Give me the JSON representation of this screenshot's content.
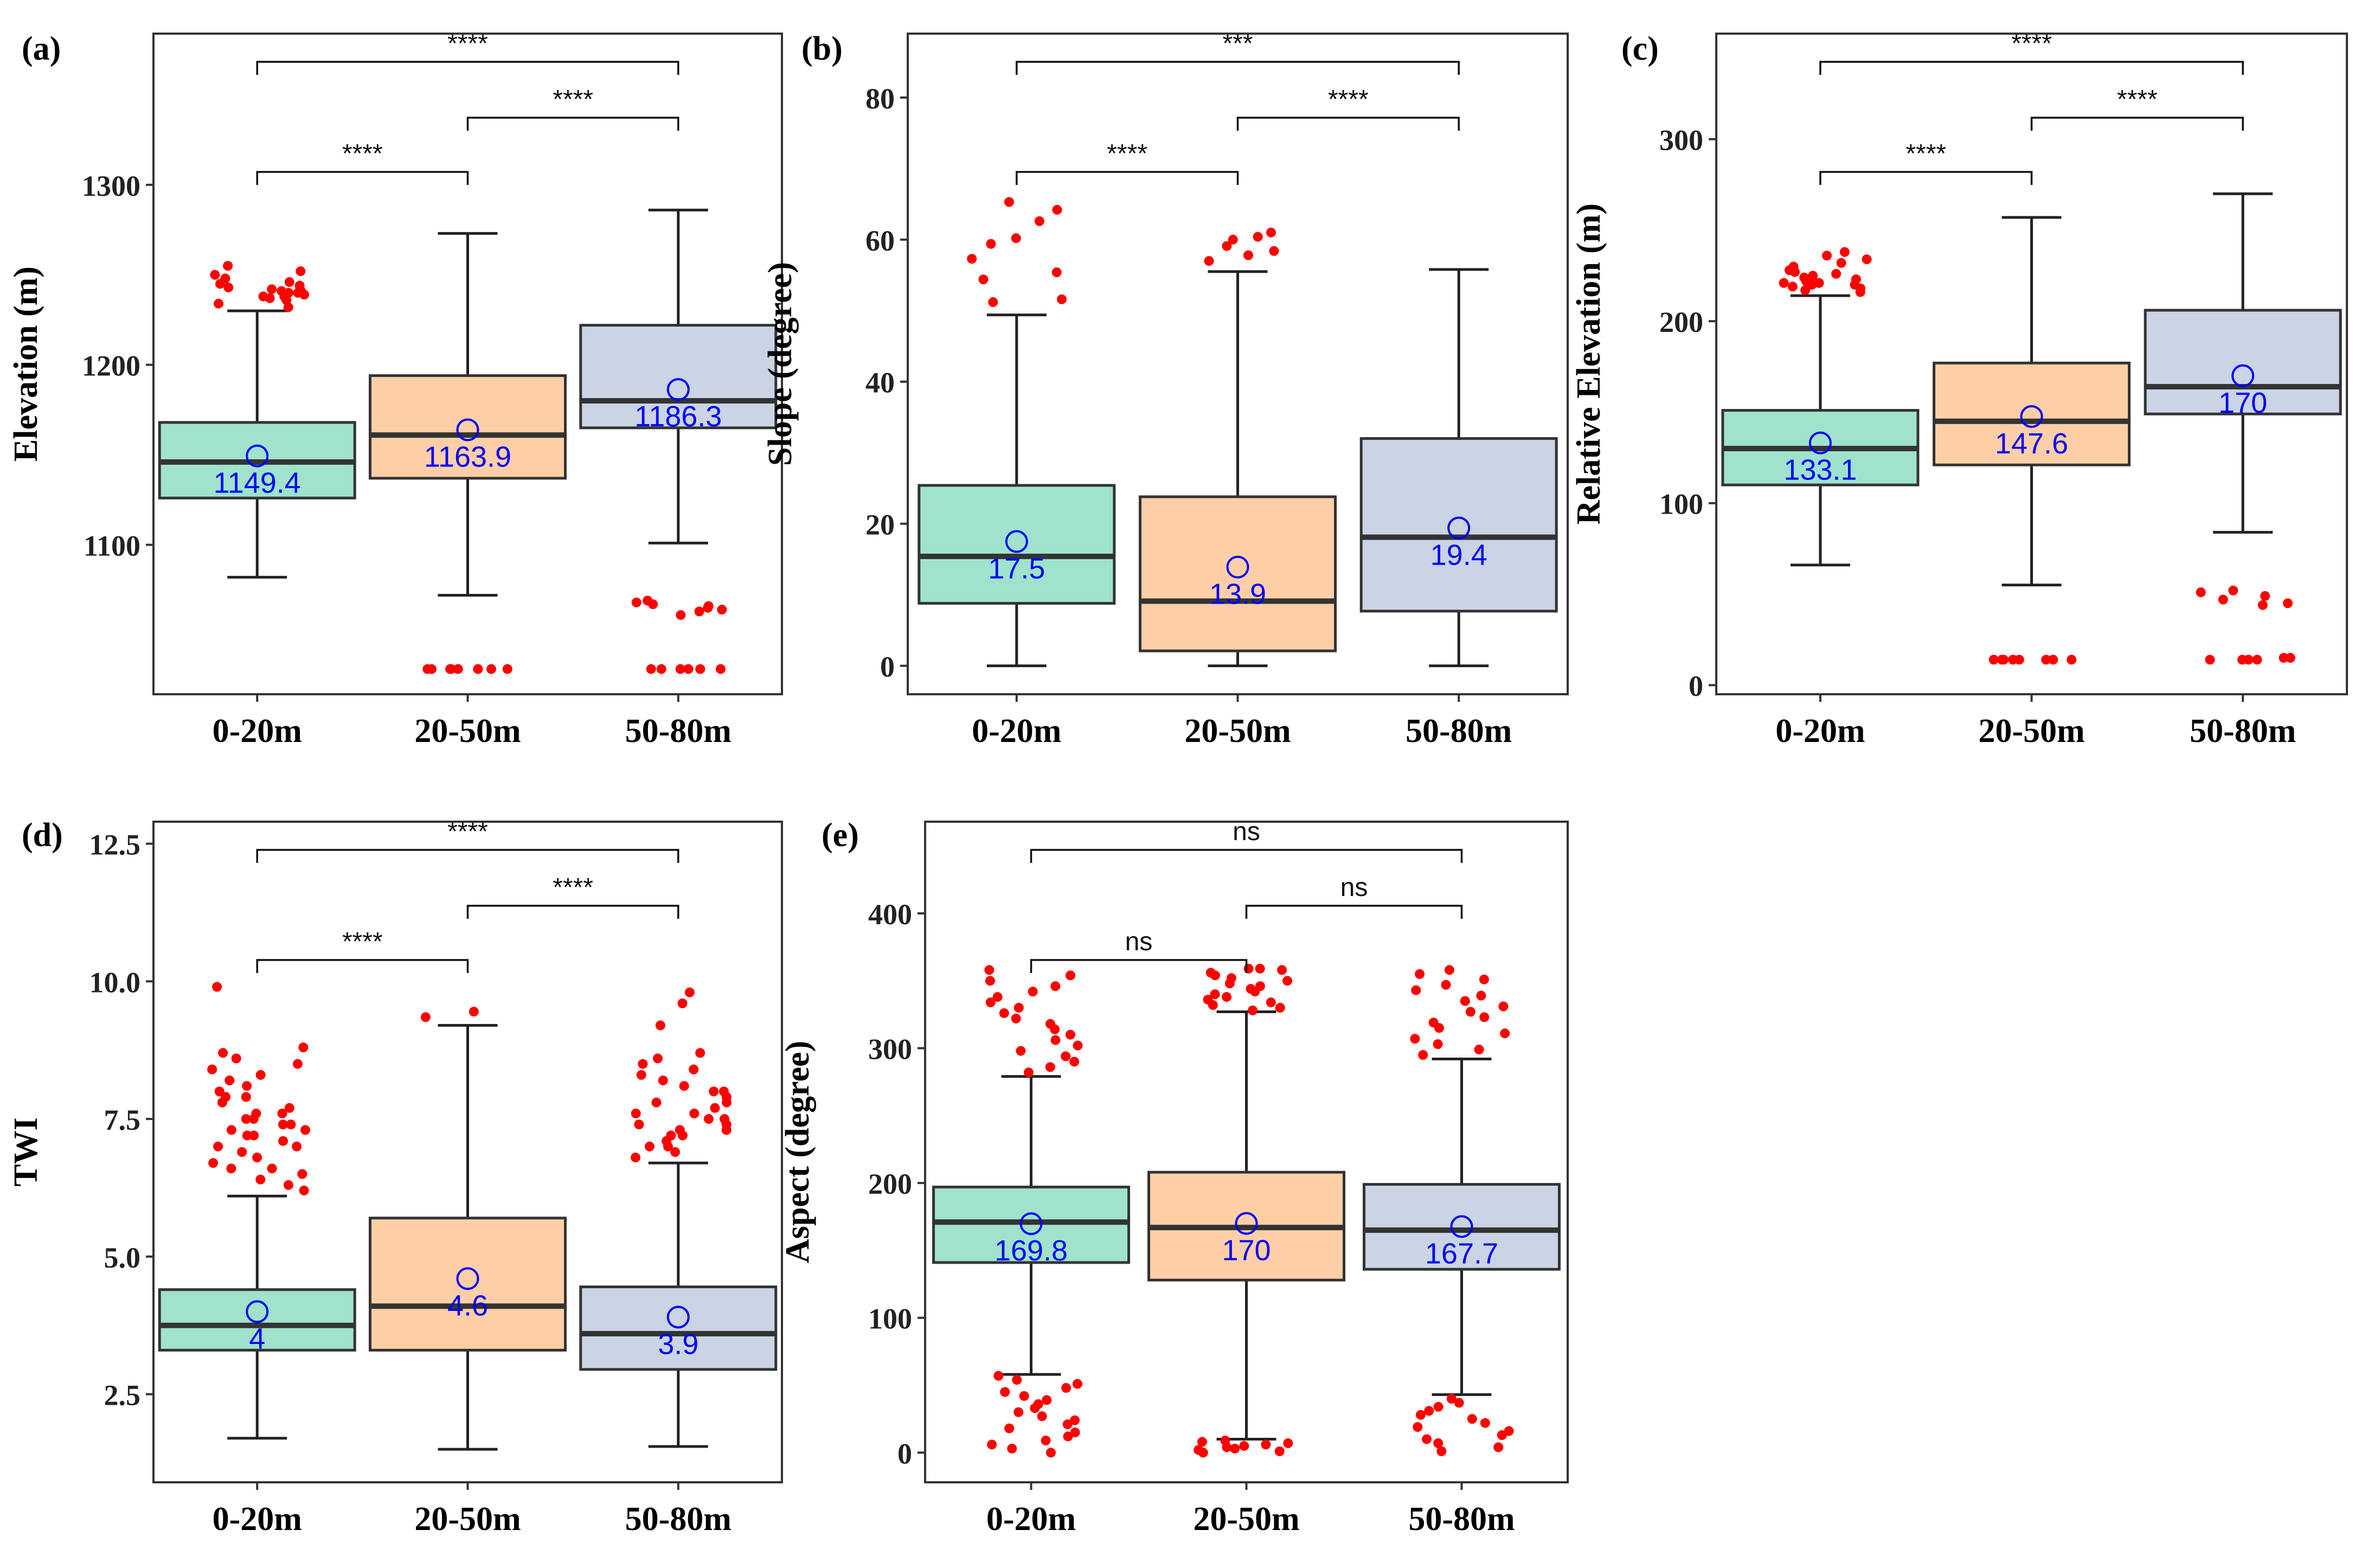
{
  "figure": {
    "x_categories": [
      "0-20m",
      "20-50m",
      "50-80m"
    ]
  },
  "chart_data": [
    {
      "panel_label": "(a)",
      "type": "box",
      "ylabel": "Elevation (m)",
      "ylim": [
        1017,
        1384
      ],
      "yticks": [
        1100,
        1200,
        1300
      ],
      "categories": [
        "0-20m",
        "20-50m",
        "50-80m"
      ],
      "colors": [
        "#9fe3cc",
        "#fecfa7",
        "#cad4e5"
      ],
      "boxes": [
        {
          "whisker_low": 1082,
          "q1": 1126,
          "median": 1146,
          "q3": 1168,
          "whisker_high": 1230,
          "mean": 1149.4,
          "mean_label": "1149.4",
          "outliers": [
            1232,
            1234,
            1236,
            1237,
            1238,
            1238,
            1239,
            1240,
            1240,
            1241,
            1241,
            1242,
            1243,
            1244,
            1245,
            1246,
            1248,
            1250,
            1252,
            1255
          ]
        },
        {
          "whisker_low": 1072,
          "q1": 1137,
          "median": 1161,
          "q3": 1194,
          "whisker_high": 1273,
          "mean": 1163.9,
          "mean_label": "1163.9",
          "outliers": [
            1031,
            1031,
            1031,
            1031,
            1031,
            1031,
            1031,
            1031
          ]
        },
        {
          "whisker_low": 1101,
          "q1": 1165,
          "median": 1180,
          "q3": 1222,
          "whisker_high": 1286,
          "mean": 1186.3,
          "mean_label": "1186.3",
          "outliers": [
            1031,
            1031,
            1031,
            1031,
            1031,
            1031,
            1061,
            1063,
            1064,
            1065,
            1066,
            1067,
            1068,
            1069
          ]
        }
      ],
      "comparisons": [
        {
          "from": 0,
          "to": 1,
          "label": "****"
        },
        {
          "from": 1,
          "to": 2,
          "label": "****"
        },
        {
          "from": 0,
          "to": 2,
          "label": "****"
        }
      ]
    },
    {
      "panel_label": "(b)",
      "type": "box",
      "ylabel": "Slope (degree)",
      "ylim": [
        -4,
        89
      ],
      "yticks": [
        0,
        20,
        40,
        60,
        80
      ],
      "categories": [
        "0-20m",
        "20-50m",
        "50-80m"
      ],
      "colors": [
        "#9fe3cc",
        "#fecfa7",
        "#cad4e5"
      ],
      "boxes": [
        {
          "whisker_low": 0,
          "q1": 8.8,
          "median": 15.4,
          "q3": 25.4,
          "whisker_high": 49.4,
          "mean": 17.5,
          "mean_label": "17.5",
          "outliers": [
            51.2,
            51.6,
            54.4,
            55.4,
            57.3,
            59.4,
            60.2,
            62.6,
            64.2,
            65.3
          ]
        },
        {
          "whisker_low": 0,
          "q1": 2.1,
          "median": 9.1,
          "q3": 23.8,
          "whisker_high": 55.5,
          "mean": 13.9,
          "mean_label": "13.9",
          "outliers": [
            57.0,
            57.8,
            58.4,
            59.1,
            60.0,
            60.4,
            61.0
          ]
        },
        {
          "whisker_low": 0,
          "q1": 7.7,
          "median": 18.1,
          "q3": 32.0,
          "whisker_high": 55.8,
          "mean": 19.4,
          "mean_label": "19.4",
          "outliers": []
        }
      ],
      "comparisons": [
        {
          "from": 0,
          "to": 1,
          "label": "****"
        },
        {
          "from": 1,
          "to": 2,
          "label": "****"
        },
        {
          "from": 0,
          "to": 2,
          "label": "***"
        }
      ]
    },
    {
      "panel_label": "(c)",
      "type": "box",
      "ylabel": "Relative Elevation (m)",
      "ylim": [
        -5,
        358
      ],
      "yticks": [
        0,
        100,
        200,
        300
      ],
      "categories": [
        "0-20m",
        "20-50m",
        "50-80m"
      ],
      "colors": [
        "#9fe3cc",
        "#fecfa7",
        "#cad4e5"
      ],
      "boxes": [
        {
          "whisker_low": 66,
          "q1": 110,
          "median": 130,
          "q3": 151,
          "whisker_high": 214,
          "mean": 133.1,
          "mean_label": "133.1",
          "outliers": [
            216,
            217,
            218,
            219,
            220,
            220,
            221,
            221,
            222,
            223,
            224,
            225,
            226,
            227,
            228,
            230,
            232,
            234,
            236,
            238
          ]
        },
        {
          "whisker_low": 55,
          "q1": 121,
          "median": 145,
          "q3": 177,
          "whisker_high": 257,
          "mean": 147.6,
          "mean_label": "147.6",
          "outliers": [
            14,
            14,
            14,
            14,
            14,
            14,
            14,
            14
          ]
        },
        {
          "whisker_low": 84,
          "q1": 149,
          "median": 164,
          "q3": 206,
          "whisker_high": 270,
          "mean": 170,
          "mean_label": "170",
          "outliers": [
            14,
            14,
            14,
            14,
            15,
            15,
            44,
            45,
            47,
            49,
            51,
            52
          ]
        }
      ],
      "comparisons": [
        {
          "from": 0,
          "to": 1,
          "label": "****"
        },
        {
          "from": 1,
          "to": 2,
          "label": "****"
        },
        {
          "from": 0,
          "to": 2,
          "label": "****"
        }
      ]
    },
    {
      "panel_label": "(d)",
      "type": "box",
      "ylabel": "TWI",
      "ylim": [
        0.9,
        12.9
      ],
      "yticks": [
        2.5,
        5.0,
        7.5,
        10.0,
        12.5
      ],
      "categories": [
        "0-20m",
        "20-50m",
        "50-80m"
      ],
      "colors": [
        "#9fe3cc",
        "#fecfa7",
        "#cad4e5"
      ],
      "boxes": [
        {
          "whisker_low": 1.7,
          "q1": 3.3,
          "median": 3.75,
          "q3": 4.4,
          "whisker_high": 6.1,
          "mean": 4.0,
          "mean_label": "4",
          "outliers": [
            6.2,
            6.3,
            6.4,
            6.5,
            6.6,
            6.6,
            6.7,
            6.8,
            6.9,
            7.0,
            7.0,
            7.1,
            7.2,
            7.2,
            7.3,
            7.3,
            7.4,
            7.4,
            7.5,
            7.5,
            7.6,
            7.6,
            7.7,
            7.8,
            7.9,
            7.9,
            8.0,
            8.1,
            8.2,
            8.3,
            8.4,
            8.5,
            8.6,
            8.7,
            8.8,
            9.9
          ]
        },
        {
          "whisker_low": 1.5,
          "q1": 3.3,
          "median": 4.1,
          "q3": 5.7,
          "whisker_high": 9.2,
          "mean": 4.6,
          "mean_label": "4.6",
          "outliers": [
            9.35,
            9.45
          ]
        },
        {
          "whisker_low": 1.55,
          "q1": 2.95,
          "median": 3.6,
          "q3": 4.45,
          "whisker_high": 6.7,
          "mean": 3.9,
          "mean_label": "3.9",
          "outliers": [
            6.8,
            6.9,
            7.0,
            7.0,
            7.1,
            7.2,
            7.2,
            7.3,
            7.3,
            7.4,
            7.4,
            7.5,
            7.5,
            7.6,
            7.6,
            7.7,
            7.8,
            7.8,
            7.9,
            8.0,
            8.0,
            8.1,
            8.2,
            8.3,
            8.4,
            8.5,
            8.6,
            8.7,
            9.2,
            9.6,
            9.8
          ]
        }
      ],
      "comparisons": [
        {
          "from": 0,
          "to": 1,
          "label": "****"
        },
        {
          "from": 1,
          "to": 2,
          "label": "****"
        },
        {
          "from": 0,
          "to": 2,
          "label": "****"
        }
      ]
    },
    {
      "panel_label": "(e)",
      "type": "box",
      "ylabel": "Aspect (degree)",
      "ylim": [
        -22,
        468
      ],
      "yticks": [
        0,
        100,
        200,
        300,
        400
      ],
      "categories": [
        "0-20m",
        "20-50m",
        "50-80m"
      ],
      "colors": [
        "#9fe3cc",
        "#fecfa7",
        "#cad4e5"
      ],
      "boxes": [
        {
          "whisker_low": 58,
          "q1": 141,
          "median": 171,
          "q3": 197,
          "whisker_high": 279,
          "mean": 169.8,
          "mean_label": "169.8",
          "outliers": [
            0,
            3,
            6,
            9,
            12,
            15,
            18,
            21,
            24,
            27,
            30,
            33,
            36,
            39,
            42,
            45,
            48,
            51,
            54,
            57,
            282,
            286,
            290,
            294,
            298,
            302,
            306,
            310,
            314,
            318,
            322,
            326,
            330,
            334,
            338,
            342,
            346,
            350,
            354,
            358
          ]
        },
        {
          "whisker_low": 10,
          "q1": 128,
          "median": 167,
          "q3": 208,
          "whisker_high": 327,
          "mean": 170,
          "mean_label": "170",
          "outliers": [
            0,
            1,
            2,
            3,
            4,
            5,
            6,
            7,
            8,
            9,
            328,
            330,
            332,
            334,
            336,
            338,
            340,
            342,
            344,
            346,
            348,
            350,
            352,
            354,
            356,
            358,
            359,
            359
          ]
        },
        {
          "whisker_low": 43,
          "q1": 136,
          "median": 165,
          "q3": 199,
          "whisker_high": 292,
          "mean": 167.7,
          "mean_label": "167.7",
          "outliers": [
            1,
            4,
            7,
            10,
            13,
            16,
            19,
            22,
            25,
            28,
            31,
            34,
            37,
            40,
            295,
            299,
            303,
            307,
            311,
            315,
            319,
            323,
            327,
            331,
            335,
            339,
            343,
            347,
            351,
            355,
            358
          ]
        }
      ],
      "comparisons": [
        {
          "from": 0,
          "to": 1,
          "label": "ns"
        },
        {
          "from": 1,
          "to": 2,
          "label": "ns"
        },
        {
          "from": 0,
          "to": 2,
          "label": "ns"
        }
      ]
    }
  ]
}
